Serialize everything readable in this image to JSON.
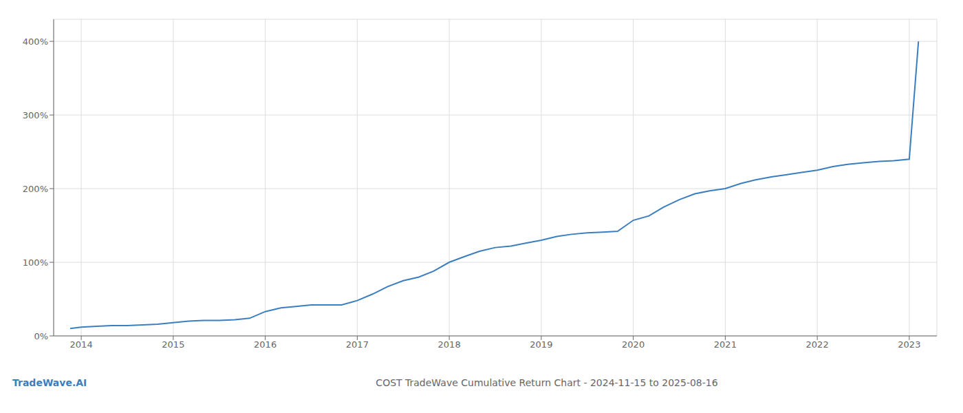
{
  "chart_data": {
    "type": "line",
    "title": "COST TradeWave Cumulative Return Chart - 2024-11-15 to 2025-08-16",
    "annotations": [
      "TradeWave.AI"
    ],
    "x": [
      2013.88,
      2014.0,
      2014.17,
      2014.33,
      2014.5,
      2014.67,
      2014.83,
      2015.0,
      2015.17,
      2015.33,
      2015.5,
      2015.67,
      2015.83,
      2016.0,
      2016.17,
      2016.33,
      2016.5,
      2016.67,
      2016.83,
      2017.0,
      2017.17,
      2017.33,
      2017.5,
      2017.67,
      2017.83,
      2018.0,
      2018.17,
      2018.33,
      2018.5,
      2018.67,
      2018.83,
      2019.0,
      2019.17,
      2019.33,
      2019.5,
      2019.67,
      2019.83,
      2020.0,
      2020.17,
      2020.33,
      2020.5,
      2020.67,
      2020.83,
      2021.0,
      2021.17,
      2021.33,
      2021.5,
      2021.67,
      2021.83,
      2022.0,
      2022.17,
      2022.33,
      2022.5,
      2022.67,
      2022.83,
      2023.0,
      2023.1
    ],
    "values": [
      10,
      12,
      13,
      14,
      14,
      15,
      16,
      18,
      20,
      21,
      21,
      22,
      24,
      33,
      38,
      40,
      42,
      42,
      42,
      48,
      57,
      67,
      75,
      80,
      88,
      100,
      108,
      115,
      120,
      122,
      126,
      130,
      135,
      138,
      140,
      141,
      142,
      157,
      163,
      175,
      185,
      193,
      197,
      200,
      207,
      212,
      216,
      219,
      222,
      225,
      230,
      233,
      235,
      237,
      238,
      240,
      400
    ],
    "color": "#3a7ebf",
    "xlim": [
      2013.7,
      2023.3
    ],
    "xticks": [
      2014,
      2015,
      2016,
      2017,
      2018,
      2019,
      2020,
      2021,
      2022,
      2023
    ],
    "ylim": [
      0,
      430
    ],
    "yticks": [
      {
        "value": 0,
        "label": "0%"
      },
      {
        "value": 100,
        "label": "100%"
      },
      {
        "value": 200,
        "label": "200%"
      },
      {
        "value": 300,
        "label": "300%"
      },
      {
        "value": 400,
        "label": "400%"
      }
    ],
    "grid": true
  }
}
